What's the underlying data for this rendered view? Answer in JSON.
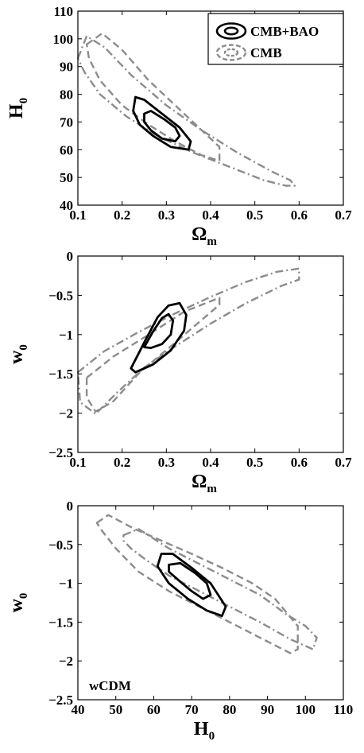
{
  "colors": {
    "cmb_bao": "#000000",
    "cmb": "#8c8c8c",
    "axes": "#000000",
    "background": "#ffffff"
  },
  "legend": {
    "entries": [
      {
        "label": "CMB+BAO",
        "color": "#000000",
        "style": "solid"
      },
      {
        "label": "CMB",
        "color": "#8c8c8c",
        "style": "dashed"
      }
    ],
    "placement": "top-right"
  },
  "chart_data": [
    {
      "type": "line",
      "panel": "top",
      "xlabel": "Ω",
      "xlabel_sub": "m",
      "ylabel": "H",
      "ylabel_sub": "0",
      "xlim": [
        0.1,
        0.7
      ],
      "ylim": [
        40,
        110
      ],
      "xticks": [
        0.1,
        0.2,
        0.3,
        0.4,
        0.5,
        0.6,
        0.7
      ],
      "xtick_labels": [
        "0.1",
        "0.2",
        "0.3",
        "0.4",
        "0.5",
        "0.6",
        "0.7"
      ],
      "yticks": [
        40,
        50,
        60,
        70,
        80,
        90,
        100,
        110
      ],
      "ytick_labels": [
        "40",
        "50",
        "60",
        "70",
        "80",
        "90",
        "100",
        "110"
      ],
      "grid": false,
      "annotation": "",
      "series": [
        {
          "name": "CMB",
          "style": "dashdot",
          "color": "#8c8c8c",
          "x": [
            0.1,
            0.12,
            0.16,
            0.22,
            0.3,
            0.38,
            0.46,
            0.54,
            0.58,
            0.59,
            0.57,
            0.52,
            0.44,
            0.36,
            0.28,
            0.21,
            0.15,
            0.115,
            0.1
          ],
          "y": [
            93,
            101,
            97,
            87,
            76,
            67,
            59,
            52,
            49,
            47,
            47,
            49,
            54,
            59,
            65,
            72,
            80,
            88,
            93
          ]
        },
        {
          "name": "CMB",
          "style": "dashed",
          "color": "#8c8c8c",
          "x": [
            0.12,
            0.155,
            0.2,
            0.26,
            0.32,
            0.38,
            0.42,
            0.42,
            0.38,
            0.32,
            0.26,
            0.2,
            0.15,
            0.125,
            0.12
          ],
          "y": [
            98,
            102,
            96,
            85,
            76,
            67,
            61,
            56,
            58,
            63,
            69,
            76,
            85,
            93,
            98
          ]
        },
        {
          "name": "CMB+BAO",
          "style": "solid",
          "color": "#000000",
          "x": [
            0.23,
            0.25,
            0.29,
            0.33,
            0.355,
            0.35,
            0.31,
            0.27,
            0.24,
            0.225,
            0.23
          ],
          "y": [
            79,
            78,
            73,
            68,
            63,
            60,
            61,
            65,
            69,
            74,
            79
          ]
        },
        {
          "name": "CMB+BAO",
          "style": "solid",
          "color": "#000000",
          "x": [
            0.25,
            0.265,
            0.295,
            0.32,
            0.33,
            0.32,
            0.29,
            0.265,
            0.25,
            0.25
          ],
          "y": [
            73,
            74,
            71,
            68,
            65,
            63,
            64,
            67,
            70,
            73
          ]
        }
      ]
    },
    {
      "type": "line",
      "panel": "middle",
      "xlabel": "Ω",
      "xlabel_sub": "m",
      "ylabel": "w",
      "ylabel_sub": "0",
      "xlim": [
        0.1,
        0.7
      ],
      "ylim": [
        -2.5,
        0
      ],
      "xticks": [
        0.1,
        0.2,
        0.3,
        0.4,
        0.5,
        0.6,
        0.7
      ],
      "xtick_labels": [
        "0.1",
        "0.2",
        "0.3",
        "0.4",
        "0.5",
        "0.6",
        "0.7"
      ],
      "yticks": [
        0,
        -0.5,
        -1,
        -1.5,
        -2,
        -2.5
      ],
      "ytick_labels": [
        "0",
        "−0.5",
        "−1",
        "−1.5",
        "−2",
        "−2.5"
      ],
      "grid": false,
      "annotation": "",
      "series": [
        {
          "name": "CMB",
          "style": "dashdot",
          "color": "#8c8c8c",
          "x": [
            0.1,
            0.16,
            0.24,
            0.32,
            0.4,
            0.48,
            0.55,
            0.6,
            0.6,
            0.56,
            0.48,
            0.4,
            0.32,
            0.25,
            0.19,
            0.14,
            0.105,
            0.1
          ],
          "y": [
            -1.48,
            -1.21,
            -0.96,
            -0.73,
            -0.52,
            -0.33,
            -0.2,
            -0.16,
            -0.3,
            -0.38,
            -0.6,
            -0.86,
            -1.15,
            -1.42,
            -1.73,
            -2.01,
            -1.86,
            -1.48
          ]
        },
        {
          "name": "CMB",
          "style": "dashed",
          "color": "#8c8c8c",
          "x": [
            0.12,
            0.18,
            0.26,
            0.34,
            0.42,
            0.42,
            0.37,
            0.31,
            0.24,
            0.18,
            0.14,
            0.12,
            0.12
          ],
          "y": [
            -1.55,
            -1.28,
            -1.0,
            -0.71,
            -0.53,
            -0.62,
            -0.86,
            -1.15,
            -1.48,
            -1.85,
            -1.98,
            -1.8,
            -1.55
          ]
        },
        {
          "name": "CMB+BAO",
          "style": "solid",
          "color": "#000000",
          "x": [
            0.22,
            0.25,
            0.28,
            0.305,
            0.33,
            0.345,
            0.34,
            0.31,
            0.27,
            0.23,
            0.22
          ],
          "y": [
            -1.43,
            -1.1,
            -0.78,
            -0.63,
            -0.6,
            -0.75,
            -0.95,
            -1.2,
            -1.38,
            -1.48,
            -1.43
          ]
        },
        {
          "name": "CMB+BAO",
          "style": "solid",
          "color": "#000000",
          "x": [
            0.25,
            0.27,
            0.29,
            0.305,
            0.315,
            0.31,
            0.29,
            0.265,
            0.25,
            0.25
          ],
          "y": [
            -1.16,
            -0.96,
            -0.79,
            -0.74,
            -0.82,
            -1.0,
            -1.12,
            -1.17,
            -1.16,
            -1.16
          ]
        }
      ]
    },
    {
      "type": "line",
      "panel": "bottom",
      "xlabel": "H",
      "xlabel_sub": "0",
      "ylabel": "w",
      "ylabel_sub": "0",
      "xlim": [
        40,
        110
      ],
      "ylim": [
        -2.5,
        0
      ],
      "xticks": [
        40,
        50,
        60,
        70,
        80,
        90,
        100,
        110
      ],
      "xtick_labels": [
        "40",
        "50",
        "60",
        "70",
        "80",
        "90",
        "100",
        "110"
      ],
      "yticks": [
        0,
        -0.5,
        -1,
        -1.5,
        -2,
        -2.5
      ],
      "ytick_labels": [
        "0",
        "−0.5",
        "−1",
        "−1.5",
        "−2",
        "−2.5"
      ],
      "grid": false,
      "annotation": "wCDM",
      "series": [
        {
          "name": "CMB",
          "style": "dashed",
          "color": "#8c8c8c",
          "x": [
            45,
            48,
            55,
            62,
            70,
            78,
            86,
            92,
            98,
            98,
            96,
            88,
            80,
            72,
            64,
            56,
            50,
            46,
            45
          ],
          "y": [
            -0.22,
            -0.12,
            -0.3,
            -0.45,
            -0.62,
            -0.8,
            -1.0,
            -1.2,
            -1.55,
            -1.85,
            -1.9,
            -1.7,
            -1.5,
            -1.3,
            -1.1,
            -0.85,
            -0.55,
            -0.3,
            -0.22
          ]
        },
        {
          "name": "CMB",
          "style": "dashdot",
          "color": "#8c8c8c",
          "x": [
            52,
            56,
            64,
            72,
            80,
            88,
            95,
            100,
            103,
            102,
            96,
            88,
            80,
            72,
            64,
            58,
            54,
            52,
            52
          ],
          "y": [
            -0.38,
            -0.3,
            -0.55,
            -0.75,
            -0.95,
            -1.15,
            -1.4,
            -1.55,
            -1.7,
            -1.85,
            -1.72,
            -1.5,
            -1.3,
            -1.1,
            -0.9,
            -0.7,
            -0.55,
            -0.45,
            -0.38
          ]
        },
        {
          "name": "CMB+BAO",
          "style": "solid",
          "color": "#000000",
          "x": [
            62,
            65,
            70,
            75,
            79,
            78,
            74,
            69,
            64,
            61,
            62
          ],
          "y": [
            -0.62,
            -0.62,
            -0.8,
            -1.0,
            -1.3,
            -1.42,
            -1.35,
            -1.2,
            -1.0,
            -0.78,
            -0.62
          ]
        },
        {
          "name": "CMB+BAO",
          "style": "solid",
          "color": "#000000",
          "x": [
            64,
            67,
            71,
            74,
            75,
            73,
            70,
            67,
            64,
            64
          ],
          "y": [
            -0.76,
            -0.74,
            -0.87,
            -1.0,
            -1.15,
            -1.2,
            -1.1,
            -0.98,
            -0.85,
            -0.76
          ]
        }
      ]
    }
  ]
}
